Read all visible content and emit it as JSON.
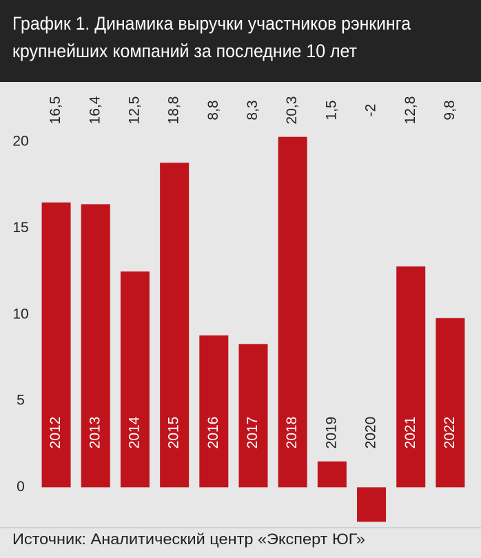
{
  "chart_data": {
    "type": "bar",
    "title": [
      "График 1. Динамика выручки участников рэнкинга",
      "крупнейших компаний за последние 10 лет"
    ],
    "categories": [
      "2012",
      "2013",
      "2014",
      "2015",
      "2016",
      "2017",
      "2018",
      "2019",
      "2020",
      "2021",
      "2022"
    ],
    "values": [
      16.5,
      16.4,
      12.5,
      18.8,
      8.8,
      8.3,
      20.3,
      1.5,
      -2,
      12.8,
      9.8
    ],
    "value_labels": [
      "16,5",
      "16,4",
      "12,5",
      "18,8",
      "8,8",
      "8,3",
      "20,3",
      "1,5",
      "-2",
      "12,8",
      "9,8"
    ],
    "color": "#c0141c",
    "ylim": [
      -2.3,
      23.2
    ],
    "yticks": [
      0,
      5,
      10,
      15,
      20
    ],
    "grid": false,
    "source": "Источник: Аналитический центр «Эксперт ЮГ»"
  }
}
